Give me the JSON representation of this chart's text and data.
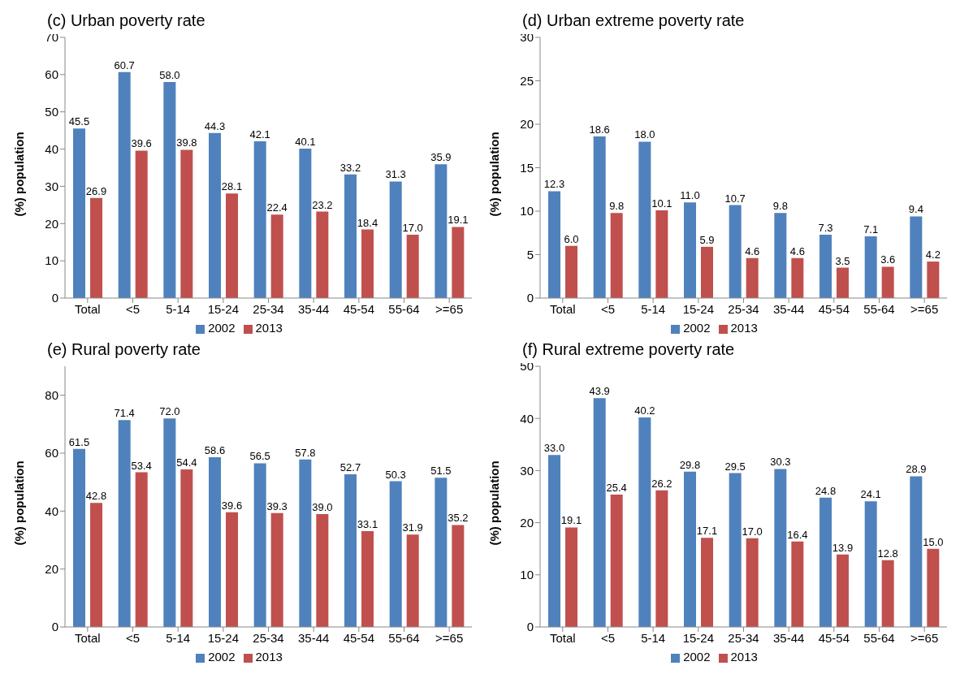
{
  "chart_data": [
    {
      "type": "bar",
      "title": "(c)   Urban poverty rate",
      "ylabel": "(%) population",
      "categories": [
        "Total",
        "<5",
        "5-14",
        "15-24",
        "25-34",
        "35-44",
        "45-54",
        "55-64",
        ">=65"
      ],
      "ylim": [
        0,
        70
      ],
      "yticks": [
        0,
        10,
        20,
        30,
        40,
        50,
        60,
        70
      ],
      "legend": "bottom",
      "grid": false,
      "series": [
        {
          "name": "2002",
          "color": "#4f81bd",
          "values": [
            45.5,
            60.7,
            58.0,
            44.3,
            42.1,
            40.1,
            33.2,
            31.3,
            35.9
          ],
          "value_labels": [
            "45.5",
            "60.7",
            "58.0",
            "44.3",
            "42.1",
            "40.1",
            "33.2",
            "31.3",
            "35.9"
          ]
        },
        {
          "name": "2013",
          "color": "#c0504d",
          "values": [
            26.9,
            39.6,
            39.8,
            28.1,
            22.4,
            23.2,
            18.4,
            17.0,
            19.1
          ],
          "value_labels": [
            "26.9",
            "39.6",
            "39.8",
            "28.1",
            "22.4",
            "23.2",
            "18.4",
            "17.0",
            "19.1"
          ]
        }
      ]
    },
    {
      "type": "bar",
      "title": "(d)   Urban extreme poverty rate",
      "ylabel": "(%) population",
      "categories": [
        "Total",
        "<5",
        "5-14",
        "15-24",
        "25-34",
        "35-44",
        "45-54",
        "55-64",
        ">=65"
      ],
      "ylim": [
        0,
        30
      ],
      "yticks": [
        0,
        5,
        10,
        15,
        20,
        25,
        30
      ],
      "legend": "bottom",
      "grid": false,
      "series": [
        {
          "name": "2002",
          "color": "#4f81bd",
          "values": [
            12.3,
            18.6,
            18.0,
            11.0,
            10.7,
            9.8,
            7.3,
            7.1,
            9.4
          ],
          "value_labels": [
            "12.3",
            "18.6",
            "18.0",
            "11.0",
            "10.7",
            "9.8",
            "7.3",
            "7.1",
            "9.4"
          ]
        },
        {
          "name": "2013",
          "color": "#c0504d",
          "values": [
            6.0,
            9.8,
            10.1,
            5.9,
            4.6,
            4.6,
            3.5,
            3.6,
            4.2
          ],
          "value_labels": [
            "6.0",
            "9.8",
            "10.1",
            "5.9",
            "4.6",
            "4.6",
            "3.5",
            "3.6",
            "4.2"
          ]
        }
      ]
    },
    {
      "type": "bar",
      "title": "(e)   Rural poverty rate",
      "ylabel": "(%) population",
      "categories": [
        "Total",
        "<5",
        "5-14",
        "15-24",
        "25-34",
        "35-44",
        "45-54",
        "55-64",
        ">=65"
      ],
      "ylim": [
        0,
        90
      ],
      "yticks": [
        0,
        20,
        40,
        60,
        80
      ],
      "legend": "bottom",
      "grid": false,
      "series": [
        {
          "name": "2002",
          "color": "#4f81bd",
          "values": [
            61.5,
            71.4,
            72.0,
            58.6,
            56.5,
            57.8,
            52.7,
            50.3,
            51.5
          ],
          "value_labels": [
            "61.5",
            "71.4",
            "72.0",
            "58.6",
            "56.5",
            "57.8",
            "52.7",
            "50.3",
            "51.5"
          ]
        },
        {
          "name": "2013",
          "color": "#c0504d",
          "values": [
            42.8,
            53.4,
            54.4,
            39.6,
            39.3,
            39.0,
            33.1,
            31.9,
            35.2
          ],
          "value_labels": [
            "42.8",
            "53.4",
            "54.4",
            "39.6",
            "39.3",
            "39.0",
            "33.1",
            "31.9",
            "35.2"
          ]
        }
      ]
    },
    {
      "type": "bar",
      "title": "(f)   Rural extreme poverty rate",
      "ylabel": "(%) population",
      "categories": [
        "Total",
        "<5",
        "5-14",
        "15-24",
        "25-34",
        "35-44",
        "45-54",
        "55-64",
        ">=65"
      ],
      "ylim": [
        0,
        50
      ],
      "yticks": [
        0,
        10,
        20,
        30,
        40,
        50
      ],
      "legend": "bottom",
      "grid": false,
      "series": [
        {
          "name": "2002",
          "color": "#4f81bd",
          "values": [
            33.0,
            43.9,
            40.2,
            29.8,
            29.5,
            30.3,
            24.8,
            24.1,
            28.9
          ],
          "value_labels": [
            "33.0",
            "43.9",
            "40.2",
            "29.8",
            "29.5",
            "30.3",
            "24.8",
            "24.1",
            "28.9"
          ]
        },
        {
          "name": "2013",
          "color": "#c0504d",
          "values": [
            19.1,
            25.4,
            26.2,
            17.1,
            17.0,
            16.4,
            13.9,
            12.8,
            15.0
          ],
          "value_labels": [
            "19.1",
            "25.4",
            "26.2",
            "17.1",
            "17.0",
            "16.4",
            "13.9",
            "12.8",
            "15.0"
          ]
        }
      ]
    }
  ]
}
